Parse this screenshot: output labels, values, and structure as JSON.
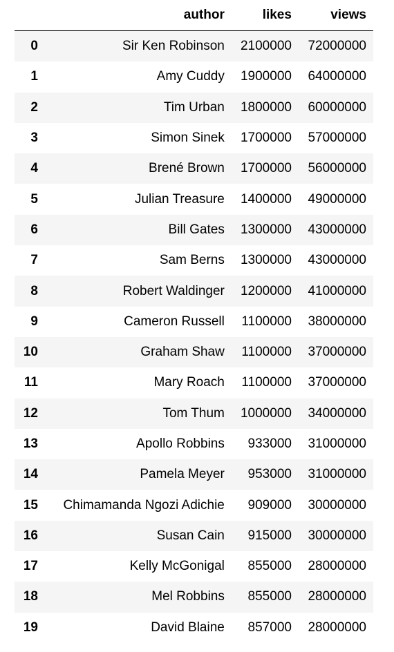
{
  "table": {
    "columns": [
      "author",
      "likes",
      "views"
    ],
    "rows": [
      {
        "index": "0",
        "author": "Sir Ken Robinson",
        "likes": "2100000",
        "views": "72000000"
      },
      {
        "index": "1",
        "author": "Amy Cuddy",
        "likes": "1900000",
        "views": "64000000"
      },
      {
        "index": "2",
        "author": "Tim Urban",
        "likes": "1800000",
        "views": "60000000"
      },
      {
        "index": "3",
        "author": "Simon Sinek",
        "likes": "1700000",
        "views": "57000000"
      },
      {
        "index": "4",
        "author": "Brené Brown",
        "likes": "1700000",
        "views": "56000000"
      },
      {
        "index": "5",
        "author": "Julian Treasure",
        "likes": "1400000",
        "views": "49000000"
      },
      {
        "index": "6",
        "author": "Bill Gates",
        "likes": "1300000",
        "views": "43000000"
      },
      {
        "index": "7",
        "author": "Sam Berns",
        "likes": "1300000",
        "views": "43000000"
      },
      {
        "index": "8",
        "author": "Robert Waldinger",
        "likes": "1200000",
        "views": "41000000"
      },
      {
        "index": "9",
        "author": "Cameron Russell",
        "likes": "1100000",
        "views": "38000000"
      },
      {
        "index": "10",
        "author": "Graham Shaw",
        "likes": "1100000",
        "views": "37000000"
      },
      {
        "index": "11",
        "author": "Mary Roach",
        "likes": "1100000",
        "views": "37000000"
      },
      {
        "index": "12",
        "author": "Tom Thum",
        "likes": "1000000",
        "views": "34000000"
      },
      {
        "index": "13",
        "author": "Apollo Robbins",
        "likes": "933000",
        "views": "31000000"
      },
      {
        "index": "14",
        "author": "Pamela Meyer",
        "likes": "953000",
        "views": "31000000"
      },
      {
        "index": "15",
        "author": "Chimamanda Ngozi Adichie",
        "likes": "909000",
        "views": "30000000"
      },
      {
        "index": "16",
        "author": "Susan Cain",
        "likes": "915000",
        "views": "30000000"
      },
      {
        "index": "17",
        "author": "Kelly McGonigal",
        "likes": "855000",
        "views": "28000000"
      },
      {
        "index": "18",
        "author": "Mel Robbins",
        "likes": "855000",
        "views": "28000000"
      },
      {
        "index": "19",
        "author": "David Blaine",
        "likes": "857000",
        "views": "28000000"
      }
    ]
  }
}
